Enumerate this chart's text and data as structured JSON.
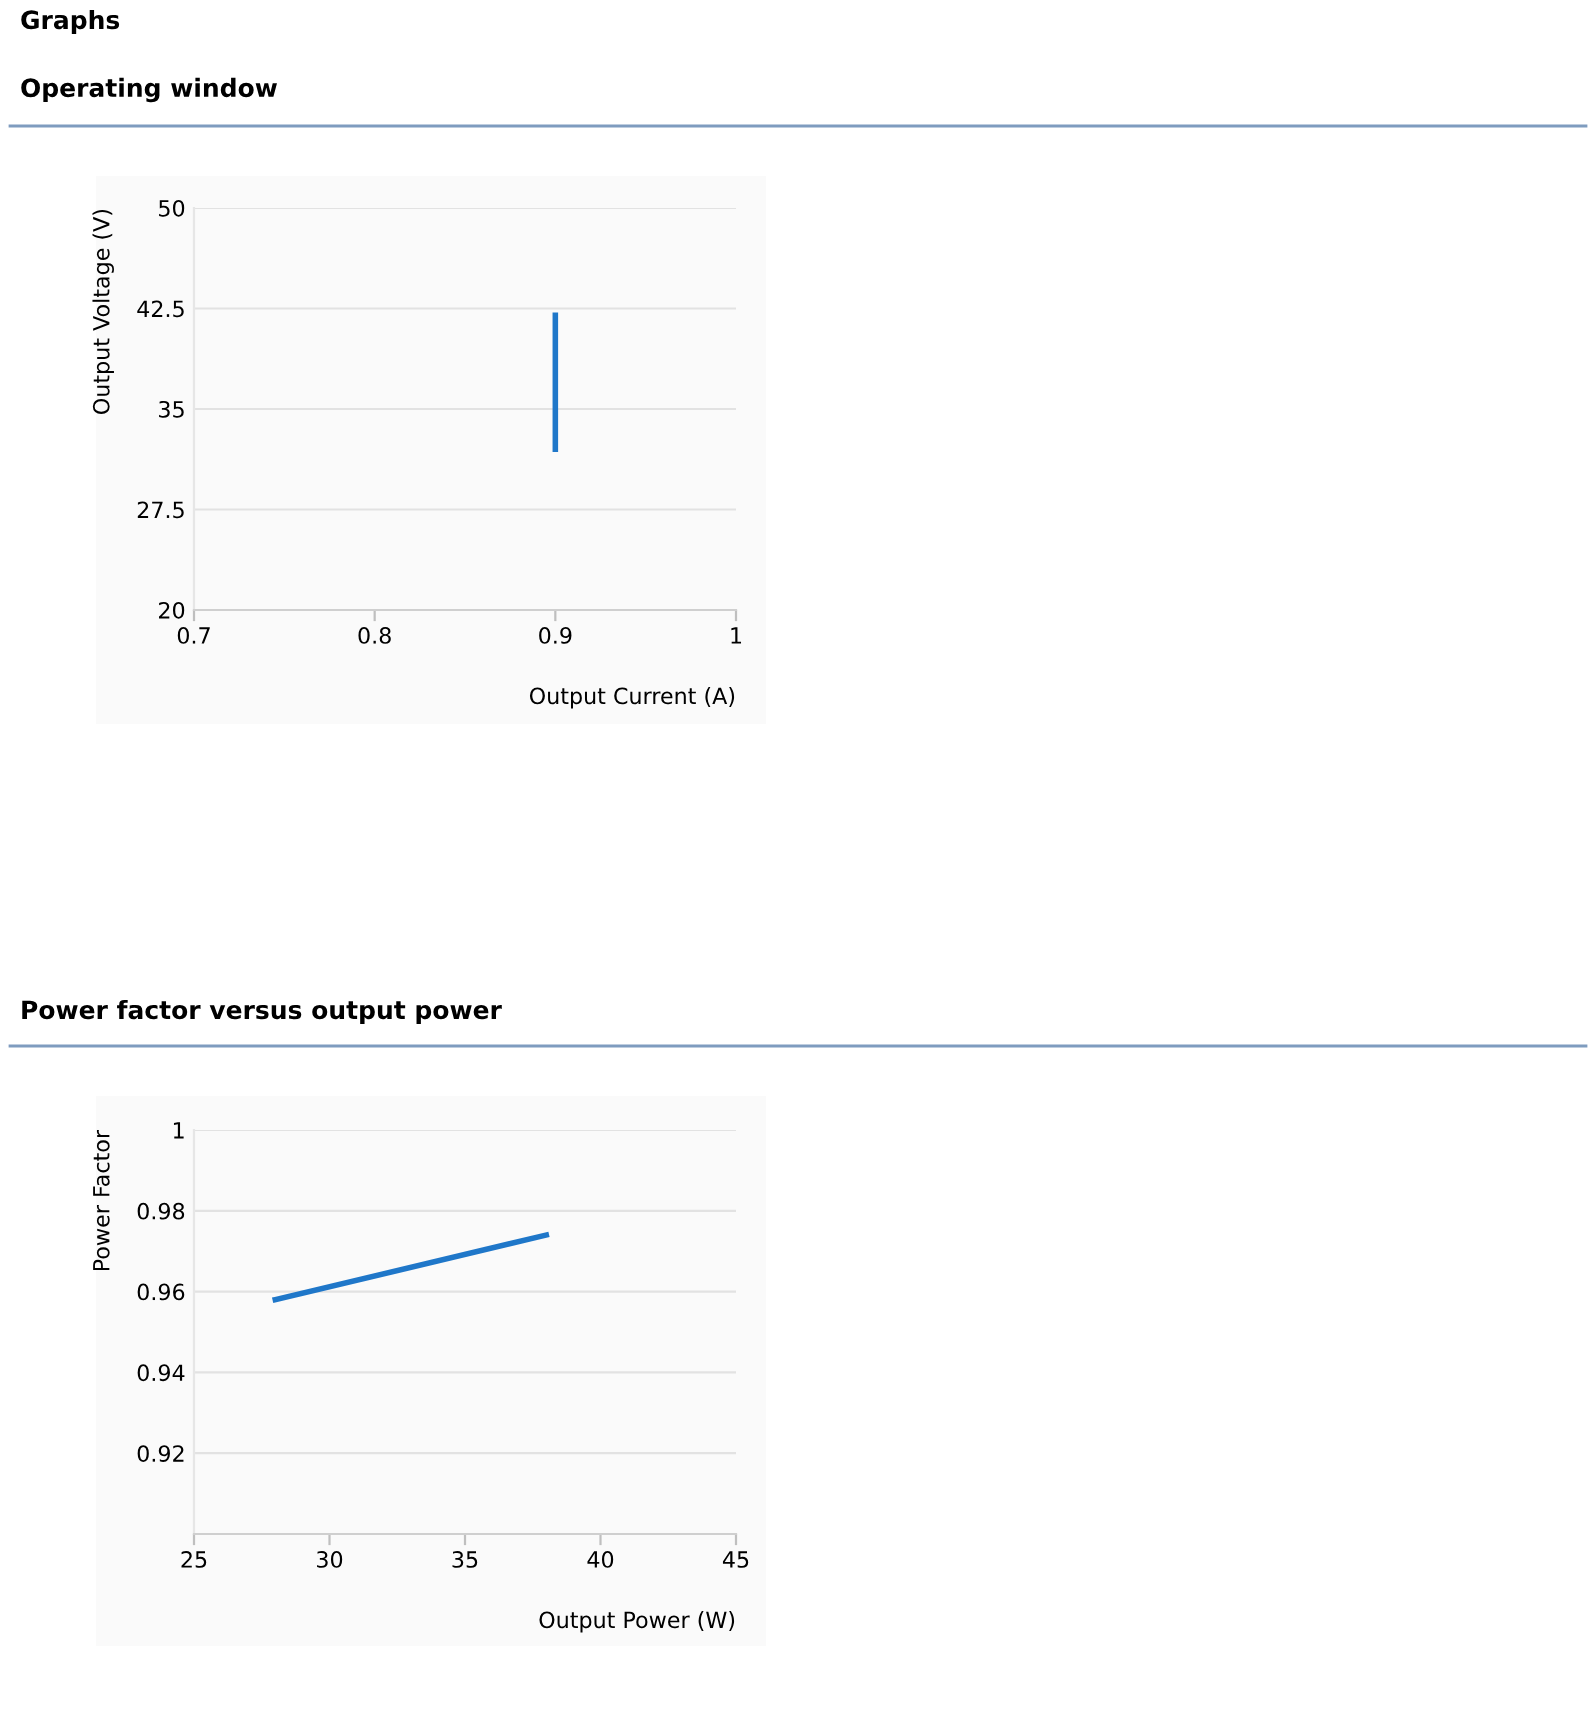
{
  "chart_data": [
    {
      "type": "line",
      "title": "Operating window",
      "xlabel": "Output Current (A)",
      "ylabel": "Output Voltage (V)",
      "annotations": [
        "Graphs"
      ],
      "series": [
        {
          "color": "#1f77c9",
          "x": [
            0.9,
            0.9
          ],
          "values": [
            32,
            42
          ]
        }
      ],
      "xlim": [
        0.7,
        1
      ],
      "xticks": [
        0.7,
        0.8,
        0.9,
        1
      ],
      "ylim": [
        20,
        50
      ],
      "yticks": [
        20,
        27.5,
        35,
        42.5,
        50
      ],
      "grid": "y",
      "legend": false,
      "marker": "none",
      "line_style": "solid"
    },
    {
      "type": "line",
      "title": "Power factor versus output power",
      "xlabel": "Output Power (W)",
      "ylabel": "Power Factor",
      "series": [
        {
          "color": "#1f77c9",
          "x": [
            28,
            38
          ],
          "values": [
            0.958,
            0.974
          ]
        }
      ],
      "xlim": [
        25,
        45
      ],
      "xticks": [
        25,
        30,
        35,
        40,
        45
      ],
      "ylim": [
        0.9,
        1
      ],
      "yticks": [
        0.92,
        0.94,
        0.96,
        0.98,
        1
      ],
      "grid": "y",
      "legend": false,
      "marker": "none",
      "line_style": "solid"
    }
  ]
}
